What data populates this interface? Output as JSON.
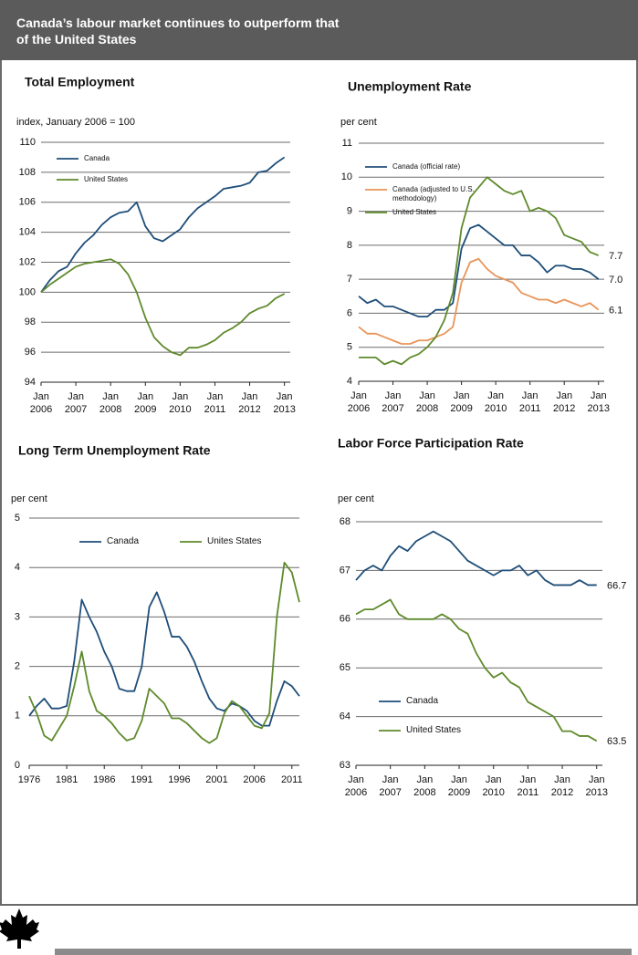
{
  "header": {
    "title": "Canada’s labour market continues to outperform that of the United States"
  },
  "chart_data": [
    {
      "type": "line",
      "title": "Total Employment",
      "y_label": "index, January 2006 = 100",
      "x": [
        "2006-01",
        "2006-04",
        "2006-07",
        "2006-10",
        "2007-01",
        "2007-04",
        "2007-07",
        "2007-10",
        "2008-01",
        "2008-04",
        "2008-07",
        "2008-10",
        "2009-01",
        "2009-04",
        "2009-07",
        "2009-10",
        "2010-01",
        "2010-04",
        "2010-07",
        "2010-10",
        "2011-01",
        "2011-04",
        "2011-07",
        "2011-10",
        "2012-01",
        "2012-04",
        "2012-07",
        "2012-10",
        "2013-01"
      ],
      "series": [
        {
          "name": "Canada",
          "color": "#1f4e79",
          "values": [
            100,
            100.8,
            101.4,
            101.7,
            102.6,
            103.3,
            103.8,
            104.5,
            105.0,
            105.3,
            105.4,
            106.0,
            104.4,
            103.6,
            103.4,
            103.8,
            104.2,
            105.0,
            105.6,
            106.0,
            106.4,
            106.9,
            107.0,
            107.1,
            107.3,
            108.0,
            108.1,
            108.6,
            109.0
          ]
        },
        {
          "name": "United States",
          "color": "#5f8a2c",
          "values": [
            100,
            100.5,
            100.9,
            101.3,
            101.7,
            101.9,
            102.0,
            102.1,
            102.2,
            101.9,
            101.2,
            100.0,
            98.3,
            97.0,
            96.4,
            96.0,
            95.8,
            96.3,
            96.3,
            96.5,
            96.8,
            97.3,
            97.6,
            98.0,
            98.6,
            98.9,
            99.1,
            99.6,
            99.9
          ]
        }
      ],
      "xlim": [
        "2006-01",
        "2013-03"
      ],
      "xticks": [
        {
          "value": "2006-01",
          "label": "Jan 2006"
        },
        {
          "value": "2007-01",
          "label": "Jan 2007"
        },
        {
          "value": "2008-01",
          "label": "Jan 2008"
        },
        {
          "value": "2009-01",
          "label": "Jan 2009"
        },
        {
          "value": "2010-01",
          "label": "Jan 2010"
        },
        {
          "value": "2011-01",
          "label": "Jan 2011"
        },
        {
          "value": "2012-01",
          "label": "Jan 2012"
        },
        {
          "value": "2013-01",
          "label": "Jan 2013"
        }
      ],
      "ylim": [
        94,
        110
      ],
      "yticks": [
        94,
        96,
        98,
        100,
        102,
        104,
        106,
        108,
        110
      ],
      "grid": true,
      "legend": "upper left",
      "end_labels": false
    },
    {
      "type": "line",
      "title": "Unemployment Rate",
      "y_label": "per cent",
      "x": [
        "2006-01",
        "2006-04",
        "2006-07",
        "2006-10",
        "2007-01",
        "2007-04",
        "2007-07",
        "2007-10",
        "2008-01",
        "2008-04",
        "2008-07",
        "2008-10",
        "2009-01",
        "2009-04",
        "2009-07",
        "2009-10",
        "2010-01",
        "2010-04",
        "2010-07",
        "2010-10",
        "2011-01",
        "2011-04",
        "2011-07",
        "2011-10",
        "2012-01",
        "2012-04",
        "2012-07",
        "2012-10",
        "2013-01"
      ],
      "series": [
        {
          "name": "Canada (official rate)",
          "color": "#1f4e79",
          "values": [
            6.5,
            6.3,
            6.4,
            6.2,
            6.2,
            6.1,
            6.0,
            5.9,
            5.9,
            6.1,
            6.1,
            6.3,
            7.9,
            8.5,
            8.6,
            8.4,
            8.2,
            8.0,
            8.0,
            7.7,
            7.7,
            7.5,
            7.2,
            7.4,
            7.4,
            7.3,
            7.3,
            7.2,
            7.0
          ],
          "value_labels": [
            null,
            null,
            null,
            null,
            null,
            null,
            null,
            null,
            null,
            null,
            null,
            null,
            null,
            null,
            null,
            null,
            null,
            null,
            null,
            null,
            null,
            null,
            null,
            null,
            null,
            null,
            null,
            null,
            "7.0"
          ]
        },
        {
          "name": "Canada (adjusted to U.S. methodology)",
          "color": "#e8955a",
          "values": [
            5.6,
            5.4,
            5.4,
            5.3,
            5.2,
            5.1,
            5.1,
            5.2,
            5.2,
            5.3,
            5.4,
            5.6,
            6.9,
            7.5,
            7.6,
            7.3,
            7.1,
            7.0,
            6.9,
            6.6,
            6.5,
            6.4,
            6.4,
            6.3,
            6.4,
            6.3,
            6.2,
            6.3,
            6.1
          ]
        },
        {
          "name": "United States",
          "color": "#5f8a2c",
          "values": [
            4.7,
            4.7,
            4.7,
            4.5,
            4.6,
            4.5,
            4.7,
            4.8,
            5.0,
            5.3,
            5.8,
            6.6,
            8.5,
            9.4,
            9.7,
            10.0,
            9.8,
            9.6,
            9.5,
            9.6,
            9.0,
            9.1,
            9.0,
            8.8,
            8.3,
            8.2,
            8.1,
            7.8,
            7.7
          ]
        }
      ],
      "xlim": [
        "2006-01",
        "2013-03"
      ],
      "xticks": [
        {
          "value": "2006-01",
          "label": "Jan 2006"
        },
        {
          "value": "2007-01",
          "label": "Jan 2007"
        },
        {
          "value": "2008-01",
          "label": "Jan 2008"
        },
        {
          "value": "2009-01",
          "label": "Jan 2009"
        },
        {
          "value": "2010-01",
          "label": "Jan 2010"
        },
        {
          "value": "2011-01",
          "label": "Jan 2011"
        },
        {
          "value": "2012-01",
          "label": "Jan 2012"
        },
        {
          "value": "2013-01",
          "label": "Jan 2013"
        }
      ],
      "ylim": [
        4,
        11
      ],
      "yticks": [
        4,
        5,
        6,
        7,
        8,
        9,
        10,
        11
      ],
      "grid": true,
      "legend": "upper left",
      "end_labels": true
    },
    {
      "type": "line",
      "title": "Long Term Unemployment Rate",
      "y_label": "per cent",
      "x": [
        1976,
        1977,
        1978,
        1979,
        1980,
        1981,
        1982,
        1983,
        1984,
        1985,
        1986,
        1987,
        1988,
        1989,
        1990,
        1991,
        1992,
        1993,
        1994,
        1995,
        1996,
        1997,
        1998,
        1999,
        2000,
        2001,
        2002,
        2003,
        2004,
        2005,
        2006,
        2007,
        2008,
        2009,
        2010,
        2011,
        2012
      ],
      "series": [
        {
          "name": "Canada",
          "color": "#1f4e79",
          "values": [
            1.0,
            1.2,
            1.35,
            1.15,
            1.15,
            1.2,
            2.1,
            3.35,
            3.0,
            2.7,
            2.3,
            2.0,
            1.55,
            1.5,
            1.5,
            2.0,
            3.2,
            3.5,
            3.1,
            2.6,
            2.6,
            2.4,
            2.1,
            1.7,
            1.35,
            1.15,
            1.1,
            1.25,
            1.2,
            1.1,
            0.9,
            0.8,
            0.8,
            1.3,
            1.7,
            1.6,
            1.4
          ]
        },
        {
          "name": "Unites States",
          "color": "#5f8a2c",
          "values": [
            1.4,
            1.05,
            0.6,
            0.5,
            0.75,
            1.0,
            1.6,
            2.3,
            1.5,
            1.1,
            1.0,
            0.85,
            0.65,
            0.5,
            0.55,
            0.9,
            1.55,
            1.4,
            1.25,
            0.95,
            0.95,
            0.85,
            0.7,
            0.55,
            0.45,
            0.55,
            1.05,
            1.3,
            1.2,
            1.0,
            0.8,
            0.75,
            1.05,
            3.0,
            4.1,
            3.9,
            3.3
          ]
        }
      ],
      "xlim": [
        1976,
        2012
      ],
      "xticks": [
        1976,
        1981,
        1986,
        1991,
        1996,
        2001,
        2006,
        2011
      ],
      "ylim": [
        0,
        5
      ],
      "yticks": [
        0,
        1,
        2,
        3,
        4,
        5
      ],
      "grid": true,
      "legend": "upper center",
      "end_labels": false
    },
    {
      "type": "line",
      "title": "Labor Force Participation Rate",
      "y_label": "per cent",
      "x": [
        "2006-01",
        "2006-04",
        "2006-07",
        "2006-10",
        "2007-01",
        "2007-04",
        "2007-07",
        "2007-10",
        "2008-01",
        "2008-04",
        "2008-07",
        "2008-10",
        "2009-01",
        "2009-04",
        "2009-07",
        "2009-10",
        "2010-01",
        "2010-04",
        "2010-07",
        "2010-10",
        "2011-01",
        "2011-04",
        "2011-07",
        "2011-10",
        "2012-01",
        "2012-04",
        "2012-07",
        "2012-10",
        "2013-01"
      ],
      "series": [
        {
          "name": "Canada",
          "color": "#1f4e79",
          "values": [
            66.8,
            67.0,
            67.1,
            67.0,
            67.3,
            67.5,
            67.4,
            67.6,
            67.7,
            67.8,
            67.7,
            67.6,
            67.4,
            67.2,
            67.1,
            67.0,
            66.9,
            67.0,
            67.0,
            67.1,
            66.9,
            67.0,
            66.8,
            66.7,
            66.7,
            66.7,
            66.8,
            66.7,
            66.7
          ]
        },
        {
          "name": "United States",
          "color": "#5f8a2c",
          "values": [
            66.1,
            66.2,
            66.2,
            66.3,
            66.4,
            66.1,
            66.0,
            66.0,
            66.0,
            66.0,
            66.1,
            66.0,
            65.8,
            65.7,
            65.3,
            65.0,
            64.8,
            64.9,
            64.7,
            64.6,
            64.3,
            64.2,
            64.1,
            64.0,
            63.7,
            63.7,
            63.6,
            63.6,
            63.5
          ]
        }
      ],
      "xlim": [
        "2006-01",
        "2013-03"
      ],
      "xticks": [
        {
          "value": "2006-01",
          "label": "Jan 2006"
        },
        {
          "value": "2007-01",
          "label": "Jan 2007"
        },
        {
          "value": "2008-01",
          "label": "Jan 2008"
        },
        {
          "value": "2009-01",
          "label": "Jan 2009"
        },
        {
          "value": "2010-01",
          "label": "Jan 2010"
        },
        {
          "value": "2011-01",
          "label": "Jan 2011"
        },
        {
          "value": "2012-01",
          "label": "Jan 2012"
        },
        {
          "value": "2013-01",
          "label": "Jan 2013"
        }
      ],
      "ylim": [
        63,
        68
      ],
      "yticks": [
        63,
        64,
        65,
        66,
        67,
        68
      ],
      "grid": true,
      "legend": "lower left",
      "end_labels": true
    }
  ]
}
